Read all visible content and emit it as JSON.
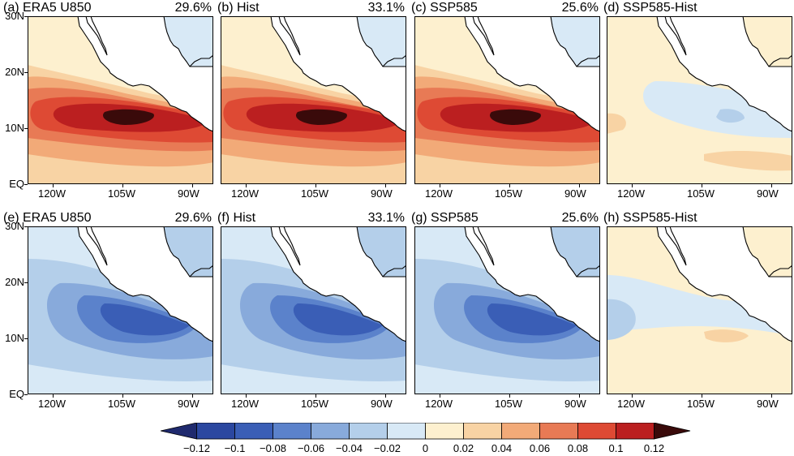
{
  "panels": [
    {
      "id": "a",
      "label": "(a) ERA5 U850",
      "pct": "29.6%",
      "field": "u850"
    },
    {
      "id": "b",
      "label": "(b) Hist",
      "pct": "33.1%",
      "field": "u850"
    },
    {
      "id": "c",
      "label": "(c) SSP585",
      "pct": "25.6%",
      "field": "u850"
    },
    {
      "id": "d",
      "label": "(d) SSP585-Hist",
      "pct": "",
      "field": "diff"
    },
    {
      "id": "e",
      "label": "(e) ERA5 U850",
      "pct": "29.6%",
      "field": "neg"
    },
    {
      "id": "f",
      "label": "(f) Hist",
      "pct": "33.1%",
      "field": "neg"
    },
    {
      "id": "g",
      "label": "(g) SSP585",
      "pct": "25.6%",
      "field": "neg"
    },
    {
      "id": "h",
      "label": "(h) SSP585-Hist",
      "pct": "",
      "field": "diff2"
    }
  ],
  "axes": {
    "lat_labels": [
      "30N",
      "20N",
      "10N",
      "EQ"
    ],
    "lon_labels": [
      "120W",
      "105W",
      "90W"
    ]
  },
  "colorbar": {
    "labels": [
      "−0.12",
      "−0.1",
      "−0.08",
      "−0.06",
      "−0.04",
      "−0.02",
      "0",
      "0.02",
      "0.04",
      "0.06",
      "0.08",
      "0.1",
      "0.12"
    ],
    "colors": [
      "#1f2a6e",
      "#2b47a0",
      "#3a5eb6",
      "#5b82cb",
      "#88aadb",
      "#b4cfea",
      "#d8e9f6",
      "#fdf0cf",
      "#f8d3a4",
      "#f2aa78",
      "#e87a55",
      "#de4a34",
      "#bb1f20",
      "#3a0a0a"
    ]
  }
}
